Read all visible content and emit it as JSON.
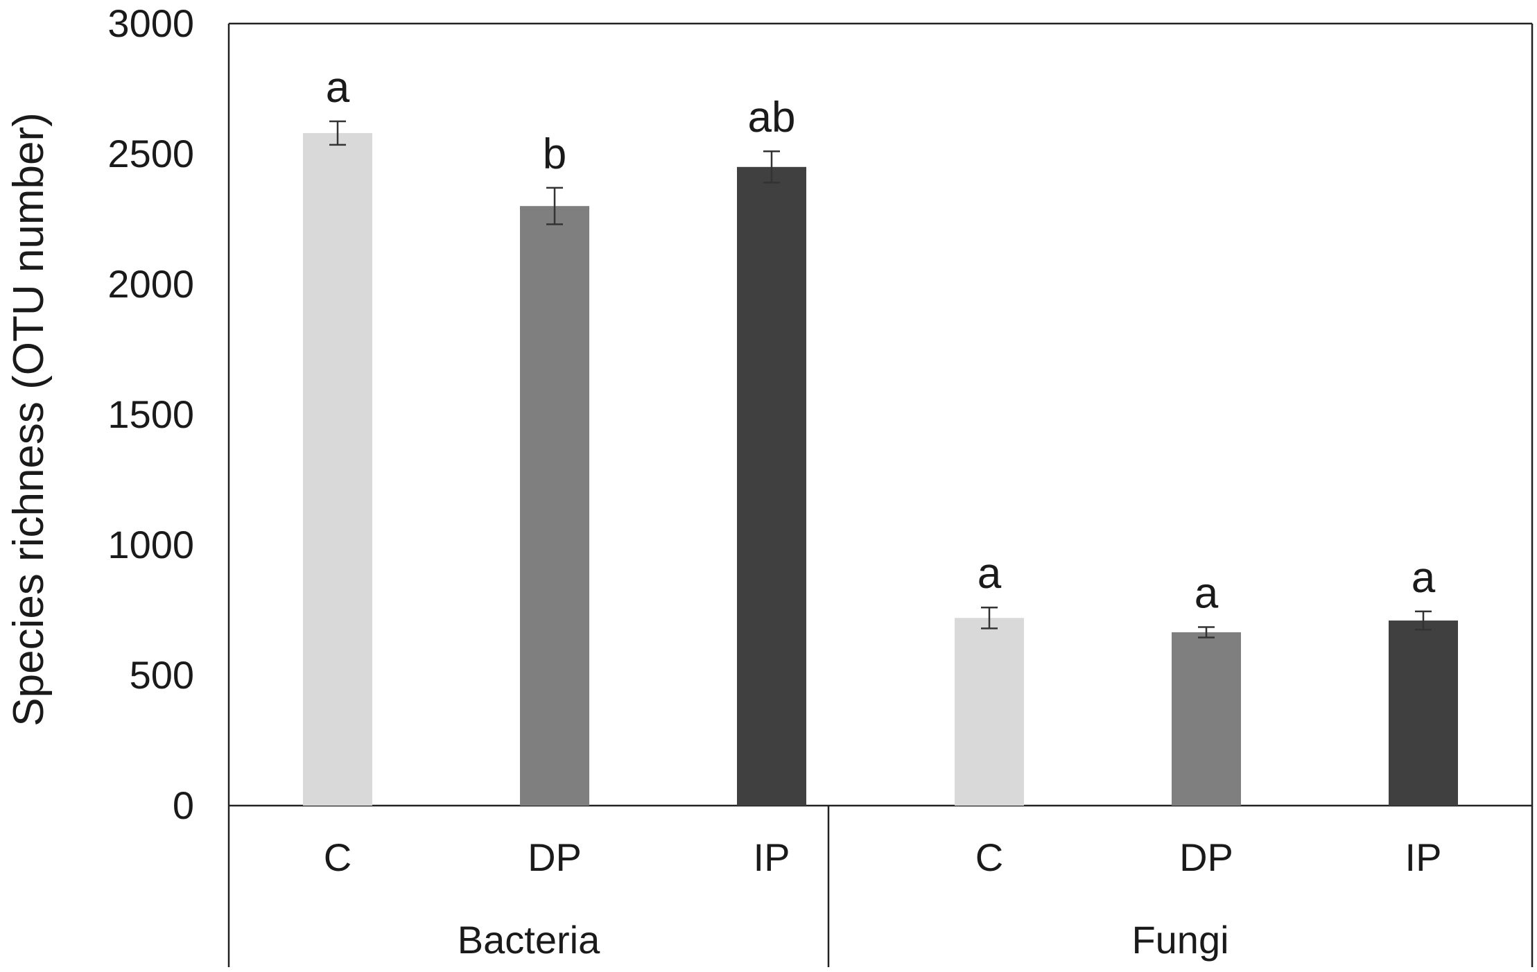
{
  "chart_data": {
    "type": "bar",
    "ylabel": "Species richness  (OTU number)",
    "ylim": [
      0,
      3000
    ],
    "yticks": [
      0,
      500,
      1000,
      1500,
      2000,
      2500,
      3000
    ],
    "grid": false,
    "groups": [
      "Bacteria",
      "Fungi"
    ],
    "categories": [
      "C",
      "DP",
      "IP"
    ],
    "colors": {
      "C": "#d9d9d9",
      "DP": "#7f7f7f",
      "IP": "#404040"
    },
    "bars": [
      {
        "group": "Bacteria",
        "category": "C",
        "value": 2580,
        "error": 45,
        "letter": "a"
      },
      {
        "group": "Bacteria",
        "category": "DP",
        "value": 2300,
        "error": 70,
        "letter": "b"
      },
      {
        "group": "Bacteria",
        "category": "IP",
        "value": 2450,
        "error": 60,
        "letter": "ab"
      },
      {
        "group": "Fungi",
        "category": "C",
        "value": 720,
        "error": 40,
        "letter": "a"
      },
      {
        "group": "Fungi",
        "category": "DP",
        "value": 665,
        "error": 20,
        "letter": "a"
      },
      {
        "group": "Fungi",
        "category": "IP",
        "value": 710,
        "error": 35,
        "letter": "a"
      }
    ]
  }
}
